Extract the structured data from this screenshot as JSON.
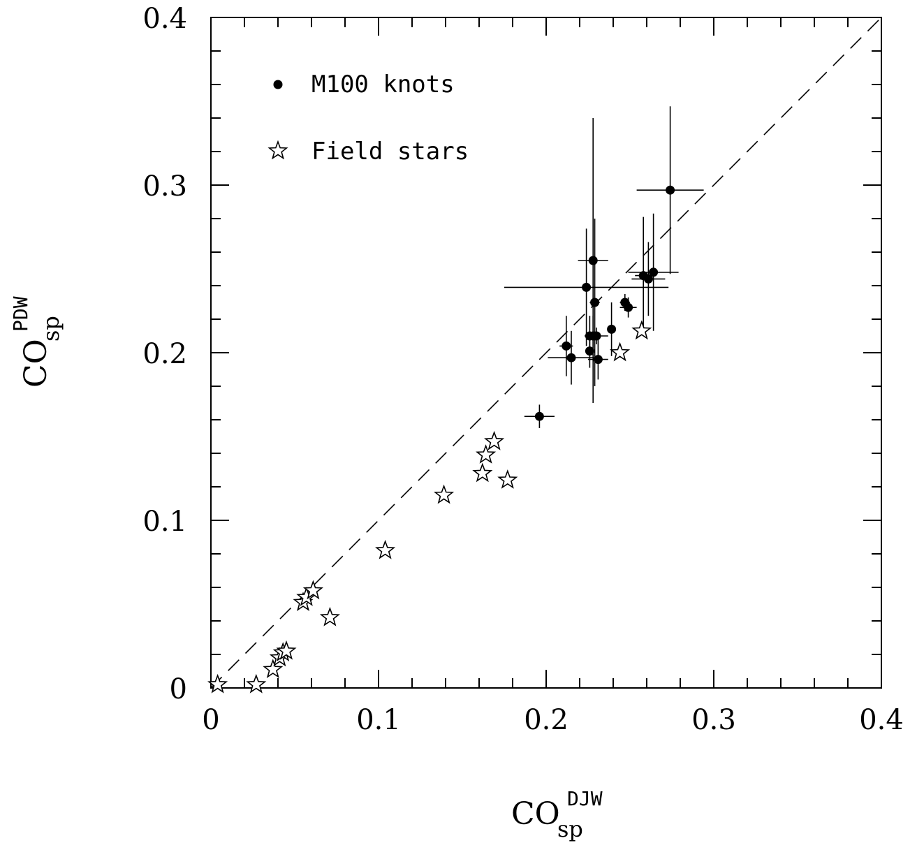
{
  "chart_data": {
    "type": "scatter",
    "xlim": [
      0,
      0.4
    ],
    "ylim": [
      0,
      0.4
    ],
    "xticks": [
      "0",
      "0.1",
      "0.2",
      "0.3",
      "0.4"
    ],
    "yticks": [
      "0",
      "0.1",
      "0.2",
      "0.3",
      "0.4"
    ],
    "xlabel": {
      "main": "CO",
      "sub": "sp",
      "sup": "DJW"
    },
    "ylabel": {
      "main": "CO",
      "sub": "sp",
      "sup": "PDW"
    },
    "reference_line": {
      "style": "dashed",
      "from": [
        0,
        0
      ],
      "to": [
        0.4,
        0.4
      ]
    },
    "legend": {
      "placement": "top-left",
      "items": [
        {
          "marker": "filled-circle",
          "label": "M100 knots"
        },
        {
          "marker": "open-star",
          "label": "Field stars"
        }
      ]
    },
    "series": [
      {
        "name": "M100 knots",
        "marker": "filled-circle",
        "points": [
          {
            "x": 0.274,
            "y": 0.297,
            "xerr": [
              0.02,
              0.02
            ],
            "yerr": [
              0.05,
              0.05
            ]
          },
          {
            "x": 0.228,
            "y": 0.255,
            "xerr": [
              0.009,
              0.009
            ],
            "yerr": [
              0.085,
              0.085
            ]
          },
          {
            "x": 0.224,
            "y": 0.239,
            "xerr": [
              0.049,
              0.049
            ],
            "yerr": [
              0.035,
              0.035
            ]
          },
          {
            "x": 0.229,
            "y": 0.23,
            "xerr": [
              0.003,
              0.003
            ],
            "yerr": [
              0.05,
              0.05
            ]
          },
          {
            "x": 0.258,
            "y": 0.246,
            "xerr": [
              0.005,
              0.005
            ],
            "yerr": [
              0.035,
              0.035
            ]
          },
          {
            "x": 0.261,
            "y": 0.244,
            "xerr": [
              0.01,
              0.01
            ],
            "yerr": [
              0.022,
              0.022
            ]
          },
          {
            "x": 0.264,
            "y": 0.248,
            "xerr": [
              0.015,
              0.015
            ],
            "yerr": [
              0.035,
              0.035
            ]
          },
          {
            "x": 0.247,
            "y": 0.23,
            "xerr": [
              0.003,
              0.003
            ],
            "yerr": [
              0.005,
              0.005
            ]
          },
          {
            "x": 0.249,
            "y": 0.227,
            "xerr": [
              0.005,
              0.005
            ],
            "yerr": [
              0.006,
              0.006
            ]
          },
          {
            "x": 0.239,
            "y": 0.214,
            "xerr": [
              0.002,
              0.002
            ],
            "yerr": [
              0.016,
              0.016
            ]
          },
          {
            "x": 0.212,
            "y": 0.204,
            "xerr": [
              0.004,
              0.004
            ],
            "yerr": [
              0.018,
              0.018
            ]
          },
          {
            "x": 0.215,
            "y": 0.197,
            "xerr": [
              0.014,
              0.014
            ],
            "yerr": [
              0.016,
              0.016
            ]
          },
          {
            "x": 0.226,
            "y": 0.21,
            "xerr": [
              0.003,
              0.003
            ],
            "yerr": [
              0.012,
              0.012
            ]
          },
          {
            "x": 0.228,
            "y": 0.21,
            "xerr": [
              0.002,
              0.002
            ],
            "yerr": [
              0.012,
              0.012
            ]
          },
          {
            "x": 0.23,
            "y": 0.21,
            "xerr": [
              0.007,
              0.007
            ],
            "yerr": [
              0.005,
              0.005
            ]
          },
          {
            "x": 0.226,
            "y": 0.201,
            "xerr": [
              0.002,
              0.002
            ],
            "yerr": [
              0.01,
              0.01
            ]
          },
          {
            "x": 0.231,
            "y": 0.196,
            "xerr": [
              0.006,
              0.006
            ],
            "yerr": [
              0.012,
              0.012
            ]
          },
          {
            "x": 0.196,
            "y": 0.162,
            "xerr": [
              0.009,
              0.009
            ],
            "yerr": [
              0.007,
              0.007
            ]
          }
        ]
      },
      {
        "name": "Field stars",
        "marker": "open-star",
        "points": [
          {
            "x": 0.004,
            "y": 0.002
          },
          {
            "x": 0.027,
            "y": 0.002
          },
          {
            "x": 0.037,
            "y": 0.011
          },
          {
            "x": 0.041,
            "y": 0.018
          },
          {
            "x": 0.043,
            "y": 0.021
          },
          {
            "x": 0.045,
            "y": 0.022
          },
          {
            "x": 0.055,
            "y": 0.051
          },
          {
            "x": 0.057,
            "y": 0.054
          },
          {
            "x": 0.061,
            "y": 0.058
          },
          {
            "x": 0.071,
            "y": 0.042
          },
          {
            "x": 0.104,
            "y": 0.082
          },
          {
            "x": 0.139,
            "y": 0.115
          },
          {
            "x": 0.162,
            "y": 0.128
          },
          {
            "x": 0.164,
            "y": 0.139
          },
          {
            "x": 0.169,
            "y": 0.147
          },
          {
            "x": 0.177,
            "y": 0.124
          },
          {
            "x": 0.244,
            "y": 0.2
          },
          {
            "x": 0.257,
            "y": 0.213
          }
        ]
      }
    ]
  }
}
